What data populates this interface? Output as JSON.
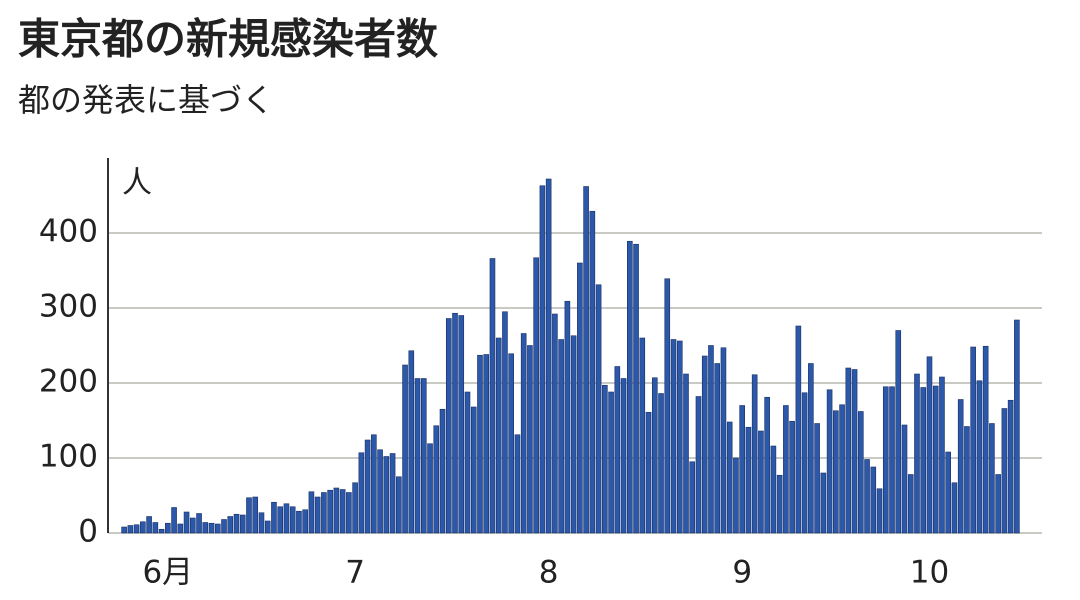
{
  "chart_data": {
    "type": "bar",
    "title": "東京都の新規感染者数",
    "subtitle": "都の発表に基づく",
    "unit_label": "人",
    "color": "#2b58a8",
    "grid": true,
    "ylim": [
      0,
      500
    ],
    "yticks": [
      0,
      100,
      200,
      300,
      400
    ],
    "categories": [
      null,
      null,
      null,
      null,
      null,
      null,
      null,
      "6月",
      null,
      null,
      null,
      null,
      null,
      null,
      null,
      null,
      null,
      null,
      null,
      null,
      null,
      null,
      null,
      null,
      null,
      null,
      null,
      null,
      null,
      null,
      null,
      null,
      null,
      null,
      null,
      null,
      null,
      "7",
      null,
      null,
      null,
      null,
      null,
      null,
      null,
      null,
      null,
      null,
      null,
      null,
      null,
      null,
      null,
      null,
      null,
      null,
      null,
      null,
      null,
      null,
      null,
      null,
      null,
      null,
      null,
      null,
      null,
      null,
      "8",
      null,
      null,
      null,
      null,
      null,
      null,
      null,
      null,
      null,
      null,
      null,
      null,
      null,
      null,
      null,
      null,
      null,
      null,
      null,
      null,
      null,
      null,
      null,
      null,
      null,
      null,
      null,
      null,
      null,
      null,
      "9",
      null,
      null,
      null,
      null,
      null,
      null,
      null,
      null,
      null,
      null,
      null,
      null,
      null,
      null,
      null,
      null,
      null,
      null,
      null,
      null,
      null,
      null,
      null,
      null,
      null,
      null,
      null,
      null,
      null,
      "10",
      null,
      null,
      null,
      null,
      null,
      null,
      null,
      null,
      null,
      null,
      null,
      null,
      null,
      null
    ],
    "values": [
      8,
      10,
      11,
      15,
      22,
      14,
      5,
      13,
      34,
      12,
      28,
      20,
      26,
      14,
      13,
      12,
      18,
      22,
      25,
      24,
      47,
      48,
      27,
      16,
      41,
      35,
      39,
      35,
      29,
      31,
      55,
      48,
      54,
      57,
      60,
      58,
      54,
      67,
      107,
      124,
      131,
      111,
      102,
      106,
      75,
      224,
      243,
      206,
      206,
      119,
      143,
      165,
      286,
      293,
      290,
      188,
      168,
      237,
      238,
      366,
      260,
      295,
      239,
      131,
      266,
      250,
      367,
      463,
      472,
      292,
      258,
      309,
      263,
      360,
      462,
      429,
      331,
      197,
      188,
      222,
      206,
      389,
      385,
      260,
      161,
      207,
      186,
      339,
      258,
      256,
      212,
      95,
      182,
      236,
      250,
      226,
      247,
      148,
      100,
      170,
      141,
      211,
      136,
      181,
      116,
      77,
      170,
      149,
      276,
      187,
      226,
      146,
      80,
      191,
      163,
      171,
      220,
      218,
      162,
      98,
      88,
      59,
      195,
      195,
      270,
      144,
      78,
      212,
      194,
      235,
      196,
      208,
      108,
      67,
      178,
      142,
      248,
      203,
      249,
      146,
      78,
      166,
      177,
      284
    ]
  }
}
